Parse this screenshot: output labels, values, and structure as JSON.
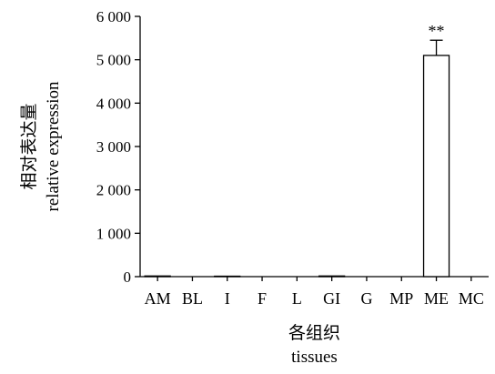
{
  "chart_data": {
    "type": "bar",
    "categories": [
      "AM",
      "BL",
      "I",
      "F",
      "L",
      "GI",
      "G",
      "MP",
      "ME",
      "MC"
    ],
    "values": [
      15,
      0,
      10,
      0,
      0,
      15,
      0,
      0,
      5100,
      0
    ],
    "errors": [
      0,
      0,
      0,
      0,
      0,
      0,
      0,
      0,
      350,
      0
    ],
    "significance": [
      {
        "category": "ME",
        "label": "**"
      }
    ],
    "ylim": [
      0,
      6000
    ],
    "yticks": [
      0,
      1000,
      2000,
      3000,
      4000,
      5000,
      6000
    ],
    "ytick_labels": [
      "0",
      "1 000",
      "2 000",
      "3 000",
      "4 000",
      "5 000",
      "6 000"
    ],
    "ylabel": [
      "相对表达量",
      "relative expression"
    ],
    "xlabel": [
      "各组织",
      "tissues"
    ],
    "bar_fill": "#ffffff",
    "bar_stroke": "#000000"
  }
}
